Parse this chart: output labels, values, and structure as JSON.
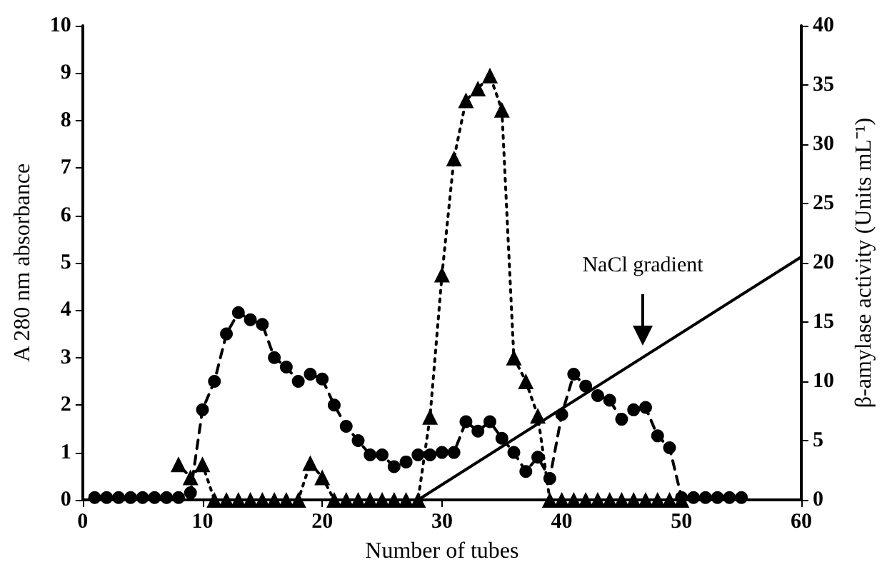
{
  "chart_data": {
    "type": "line",
    "xlabel": "Number of tubes",
    "ylabel": "A 280 nm absorbance",
    "y2label": "β-amylase activity (Units mL⁻¹)",
    "xlim": [
      0,
      60
    ],
    "xticks": [
      0,
      10,
      20,
      30,
      40,
      50,
      60
    ],
    "ylim": [
      0,
      10
    ],
    "yticks": [
      0,
      1,
      2,
      3,
      4,
      5,
      6,
      7,
      8,
      9,
      10
    ],
    "y2lim": [
      0,
      40
    ],
    "y2ticks": [
      0,
      5,
      10,
      15,
      20,
      25,
      30,
      35,
      40
    ],
    "grid": false,
    "series": [
      {
        "color": "#000000",
        "marker": "circle",
        "line_style": "dashed",
        "x": [
          1,
          2,
          3,
          4,
          5,
          6,
          7,
          8,
          9,
          10,
          11,
          12,
          13,
          14,
          15,
          16,
          17,
          18,
          19,
          20,
          21,
          22,
          23,
          24,
          25,
          26,
          27,
          28,
          29,
          30,
          31,
          32,
          33,
          34,
          35,
          36,
          37,
          38,
          39,
          40,
          41,
          42,
          43,
          44,
          45,
          46,
          47,
          48,
          49,
          50,
          51,
          52,
          53,
          54,
          55
        ],
        "values": [
          0.05,
          0.05,
          0.05,
          0.05,
          0.05,
          0.05,
          0.05,
          0.05,
          0.15,
          1.9,
          2.5,
          3.5,
          3.95,
          3.8,
          3.7,
          3.0,
          2.8,
          2.5,
          2.65,
          2.55,
          2.0,
          1.55,
          1.25,
          0.95,
          0.95,
          0.7,
          0.8,
          0.95,
          0.95,
          1.0,
          1.0,
          1.65,
          1.45,
          1.65,
          1.3,
          1.0,
          0.6,
          0.9,
          0.45,
          1.8,
          2.65,
          2.4,
          2.2,
          2.1,
          1.7,
          1.9,
          1.95,
          1.35,
          1.1,
          0.05,
          0.05,
          0.05,
          0.05,
          0.05,
          0.05
        ]
      },
      {
        "color": "#000000",
        "marker": "triangle",
        "line_style": "dotted",
        "axis": "y2",
        "x": [
          8,
          9,
          10,
          11,
          12,
          13,
          14,
          15,
          16,
          17,
          18,
          19,
          20,
          21,
          22,
          23,
          24,
          25,
          26,
          27,
          28,
          29,
          30,
          31,
          32,
          33,
          34,
          35,
          36,
          37,
          38,
          39,
          40,
          41,
          42,
          43,
          44,
          45,
          46,
          47,
          48,
          49,
          50
        ],
        "values": [
          3,
          1.9,
          3,
          0,
          0,
          0,
          0,
          0,
          0,
          0,
          0,
          3.1,
          1.9,
          0,
          0,
          0,
          0,
          0,
          0,
          0,
          0,
          7,
          19,
          28.8,
          33.7,
          34.7,
          35.8,
          32.9,
          12,
          10,
          7.1,
          0,
          0,
          0,
          0,
          0,
          0,
          0,
          0,
          0,
          0,
          0,
          0
        ]
      },
      {
        "color": "#000000",
        "marker": "none",
        "line_style": "solid",
        "axis": "y2",
        "x": [
          28,
          60
        ],
        "values": [
          0,
          20.5
        ]
      }
    ],
    "annotations": [
      "NaCl gradient"
    ]
  }
}
